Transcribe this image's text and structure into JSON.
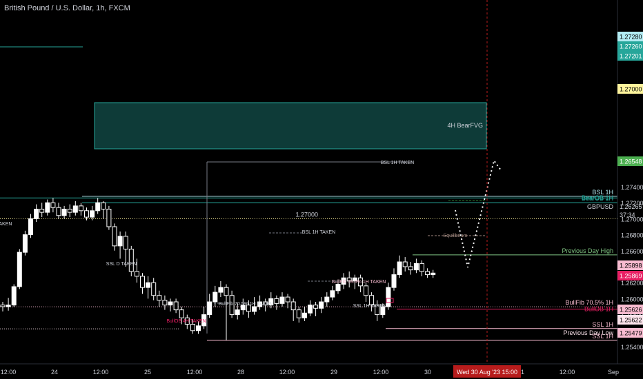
{
  "header": {
    "title": "British Pound / U.S. Dollar, 1h, FXCM"
  },
  "chart_data": {
    "type": "candlestick",
    "symbol": "GBPUSD",
    "current_price": "1.26265",
    "countdown": "37:34",
    "crosshair_time_label": "Wed 30 Aug '23   15:00",
    "ylim": [
      1.2532,
      1.275
    ],
    "grid": false,
    "colors": {
      "background": "#000000",
      "up": "#ffffff",
      "down": "#ffffff",
      "text": "#d1d4dc"
    },
    "y_ticks": [
      "1.27400",
      "1.27200",
      "1.27000",
      "1.26800",
      "1.26600",
      "1.26400",
      "1.26200",
      "1.26000",
      "1.25800",
      "1.25600",
      "1.25400"
    ],
    "x_ticks": [
      "12:00",
      "24",
      "12:00",
      "25",
      "12:00",
      "28",
      "12:00",
      "29",
      "12:00",
      "30",
      "31",
      "12:00",
      "Sep"
    ],
    "candles": [
      [
        1.2592,
        1.259,
        1.2596,
        1.2584
      ],
      [
        1.259,
        1.2592,
        1.2601,
        1.2585
      ],
      [
        1.2592,
        1.2615,
        1.2618,
        1.259
      ],
      [
        1.2615,
        1.2658,
        1.2662,
        1.2612
      ],
      [
        1.2658,
        1.268,
        1.2685,
        1.2654
      ],
      [
        1.268,
        1.27,
        1.2706,
        1.2676
      ],
      [
        1.27,
        1.2712,
        1.2718,
        1.2696
      ],
      [
        1.2712,
        1.2708,
        1.272,
        1.2702
      ],
      [
        1.2708,
        1.272,
        1.2724,
        1.2704
      ],
      [
        1.272,
        1.2714,
        1.2726,
        1.2708
      ],
      [
        1.2714,
        1.2704,
        1.272,
        1.27
      ],
      [
        1.2704,
        1.2712,
        1.2716,
        1.27
      ],
      [
        1.2712,
        1.2708,
        1.2718,
        1.2702
      ],
      [
        1.2708,
        1.2716,
        1.2722,
        1.2704
      ],
      [
        1.2716,
        1.271,
        1.272,
        1.2704
      ],
      [
        1.271,
        1.2702,
        1.2714,
        1.2698
      ],
      [
        1.2702,
        1.271,
        1.2716,
        1.2698
      ],
      [
        1.271,
        1.272,
        1.2726,
        1.2706
      ],
      [
        1.272,
        1.2712,
        1.2722,
        1.27
      ],
      [
        1.2712,
        1.269,
        1.2716,
        1.2686
      ],
      [
        1.269,
        1.2666,
        1.2694,
        1.266
      ],
      [
        1.2666,
        1.2678,
        1.2684,
        1.265
      ],
      [
        1.2678,
        1.2662,
        1.2684,
        1.264
      ],
      [
        1.2662,
        1.2634,
        1.2666,
        1.2628
      ],
      [
        1.2634,
        1.2628,
        1.265,
        1.262
      ],
      [
        1.2628,
        1.2614,
        1.2632,
        1.2606
      ],
      [
        1.2614,
        1.262,
        1.2628,
        1.26
      ],
      [
        1.262,
        1.2604,
        1.2626,
        1.2598
      ],
      [
        1.2604,
        1.2598,
        1.261,
        1.259
      ],
      [
        1.2598,
        1.2592,
        1.2604,
        1.2586
      ],
      [
        1.2592,
        1.2596,
        1.26,
        1.2584
      ],
      [
        1.2596,
        1.2586,
        1.26,
        1.2582
      ],
      [
        1.2586,
        1.2576,
        1.259,
        1.2568
      ],
      [
        1.2576,
        1.2568,
        1.258,
        1.2562
      ],
      [
        1.2568,
        1.256,
        1.2574,
        1.2556
      ],
      [
        1.256,
        1.2566,
        1.2572,
        1.2556
      ],
      [
        1.2566,
        1.258,
        1.259,
        1.2562
      ],
      [
        1.258,
        1.2596,
        1.2606,
        1.2576
      ],
      [
        1.2596,
        1.2608,
        1.2616,
        1.259
      ],
      [
        1.2608,
        1.2614,
        1.2622,
        1.2602
      ],
      [
        1.2614,
        1.2604,
        1.2618,
        1.2548
      ],
      [
        1.2604,
        1.258,
        1.261,
        1.2576
      ],
      [
        1.258,
        1.2586,
        1.2594,
        1.2574
      ],
      [
        1.2586,
        1.2592,
        1.26,
        1.258
      ],
      [
        1.2592,
        1.2584,
        1.2598,
        1.2576
      ],
      [
        1.2584,
        1.259,
        1.2602,
        1.258
      ],
      [
        1.259,
        1.2596,
        1.2604,
        1.2586
      ],
      [
        1.2596,
        1.2592,
        1.26,
        1.2584
      ],
      [
        1.2592,
        1.26,
        1.2608,
        1.2588
      ],
      [
        1.26,
        1.2594,
        1.2604,
        1.2586
      ],
      [
        1.2594,
        1.2602,
        1.2608,
        1.259
      ],
      [
        1.2602,
        1.2596,
        1.2606,
        1.2588
      ],
      [
        1.2596,
        1.2586,
        1.26,
        1.2572
      ],
      [
        1.2586,
        1.2576,
        1.259,
        1.257
      ],
      [
        1.2576,
        1.2582,
        1.259,
        1.2572
      ],
      [
        1.2582,
        1.2592,
        1.2598,
        1.2578
      ],
      [
        1.2592,
        1.2588,
        1.2596,
        1.2578
      ],
      [
        1.2588,
        1.2596,
        1.2602,
        1.2582
      ],
      [
        1.2596,
        1.2602,
        1.2608,
        1.259
      ],
      [
        1.2602,
        1.261,
        1.2616,
        1.2598
      ],
      [
        1.261,
        1.2618,
        1.2624,
        1.2606
      ],
      [
        1.2618,
        1.2626,
        1.2632,
        1.2612
      ],
      [
        1.2626,
        1.2622,
        1.2634,
        1.2614
      ],
      [
        1.2622,
        1.2626,
        1.263,
        1.2612
      ],
      [
        1.2626,
        1.2616,
        1.263,
        1.2608
      ],
      [
        1.2616,
        1.2604,
        1.262,
        1.2596
      ],
      [
        1.2604,
        1.2592,
        1.2608,
        1.2584
      ],
      [
        1.2592,
        1.258,
        1.2598,
        1.2572
      ],
      [
        1.258,
        1.259,
        1.2594,
        1.2576
      ],
      [
        1.259,
        1.2614,
        1.262,
        1.2586
      ],
      [
        1.2614,
        1.263,
        1.2638,
        1.261
      ],
      [
        1.263,
        1.2646,
        1.2654,
        1.2626
      ],
      [
        1.2646,
        1.264,
        1.2652,
        1.2634
      ],
      [
        1.264,
        1.2636,
        1.2646,
        1.263
      ],
      [
        1.2636,
        1.2644,
        1.265,
        1.2632
      ],
      [
        1.2644,
        1.2634,
        1.2648,
        1.2628
      ],
      [
        1.2634,
        1.263,
        1.2638,
        1.2626
      ],
      [
        1.263,
        1.2632,
        1.2636,
        1.2626
      ]
    ],
    "levels": [
      {
        "label": "BSL 1H",
        "value": 1.2728,
        "color": "#b2ebf2",
        "badge_text": "1.27280"
      },
      {
        "label": "BearOB 1H",
        "value": 1.2726,
        "color": "#26a69a",
        "badge_text": "1.27260"
      },
      {
        "label": "BearOB 1H",
        "value": 1.27201,
        "color": "#26a69a",
        "badge_text": "1.27201"
      },
      {
        "label": "1.27000",
        "value": 1.27,
        "color": "#fff59d",
        "badge_text": "1.27000"
      },
      {
        "label": "Previous Day High",
        "value": 1.26548,
        "color": "#81c784",
        "badge_text": "1.26548"
      },
      {
        "label": "BullFib 70.5% 1H",
        "value": 1.25898,
        "color": "#f8bbd0",
        "badge_text": "1.25898"
      },
      {
        "label": "BullOB 1H",
        "value": 1.25869,
        "color": "#e91e63",
        "badge_text": "1.25869"
      },
      {
        "label": "SSL 1H",
        "value": 1.25626,
        "color": "#f8bbd0",
        "badge_text": "1.25626"
      },
      {
        "label": "Previous Day Low",
        "value": 1.25622,
        "color": "#fce4ec",
        "badge_text": "1.25622"
      },
      {
        "label": "SSL 1H",
        "value": 1.25479,
        "color": "#f8bbd0",
        "badge_text": "1.25479"
      }
    ],
    "zones": [
      {
        "label": "4H BearFVG",
        "top": 1.2691,
        "bottom": 1.2663,
        "color": "#26a69a"
      }
    ],
    "annotations": [
      "BSL 1H TAKEN",
      "BSL 1H TAKEN",
      "SSL 1H TAKEN",
      "BullFib 78.6% 1H TAKEN",
      "BullFib 70.5% 1H TAKEN",
      "SSL D TAKEN",
      "BullOB 4H TAKEN",
      "TAKEN",
      "Equilibrium",
      "1.27000"
    ],
    "projection": [
      [
        1.2625,
        1.2585,
        1.2655
      ],
      "dotted"
    ]
  }
}
